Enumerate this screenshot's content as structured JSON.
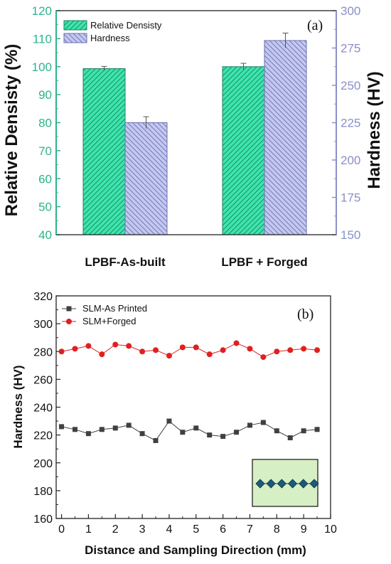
{
  "colors": {
    "density": "#2db38d",
    "density_fill": "#3be6ac",
    "hardness": "#8a8fc7",
    "hardness_fill": "#c4c8f0",
    "series_a": "#404040",
    "series_b": "#e02020",
    "inset_bg": "#d6efc4",
    "inset_marker": "#1a5c78"
  },
  "chart_data": [
    {
      "type": "bar",
      "panel_label": "(a)",
      "categories": [
        "LPBF-As-built",
        "LPBF + Forged"
      ],
      "ylabel": "Relative Densisty (%)",
      "ylabel_right": "Hardness (HV)",
      "ylim": [
        40,
        120
      ],
      "ylim_right": [
        150,
        300
      ],
      "yticks": [
        "40",
        "50",
        "60",
        "70",
        "80",
        "90",
        "100",
        "110",
        "120"
      ],
      "yticks_right": [
        "150",
        "175",
        "200",
        "225",
        "250",
        "275",
        "300"
      ],
      "legend_position": "top-left",
      "series": [
        {
          "name": "Relative Densisty",
          "axis": "left",
          "values": [
            99.3,
            100.0
          ],
          "errors": [
            0.8,
            1.2
          ]
        },
        {
          "name": "Hardness",
          "axis": "right",
          "values": [
            225,
            280
          ],
          "errors": [
            4,
            5
          ]
        }
      ]
    },
    {
      "type": "line",
      "panel_label": "(b)",
      "xlabel": "Distance and Sampling Direction (mm)",
      "ylabel": "Hardness (HV)",
      "xlim": [
        -0.2,
        10
      ],
      "ylim": [
        160,
        320
      ],
      "xticks": [
        "0",
        "1",
        "2",
        "3",
        "4",
        "5",
        "6",
        "7",
        "8",
        "9",
        "10"
      ],
      "yticks": [
        "160",
        "180",
        "200",
        "220",
        "240",
        "260",
        "280",
        "300",
        "320"
      ],
      "legend_position": "top-left",
      "x": [
        0,
        0.5,
        1,
        1.5,
        2,
        2.5,
        3,
        3.5,
        4,
        4.5,
        5,
        5.5,
        6,
        6.5,
        7,
        7.5,
        8,
        8.5,
        9,
        9.5
      ],
      "series": [
        {
          "name": "SLM-As Printed",
          "marker": "square",
          "values": [
            226,
            224,
            221,
            224,
            225,
            227,
            221,
            216,
            230,
            222,
            225,
            220,
            219,
            222,
            227,
            229,
            223,
            218,
            223,
            224
          ]
        },
        {
          "name": "SLM+Forged",
          "marker": "circle",
          "values": [
            280,
            282,
            284,
            278,
            285,
            284,
            280,
            281,
            277,
            283,
            283,
            278,
            281,
            286,
            282,
            276,
            280,
            281,
            282,
            281
          ]
        }
      ]
    }
  ]
}
